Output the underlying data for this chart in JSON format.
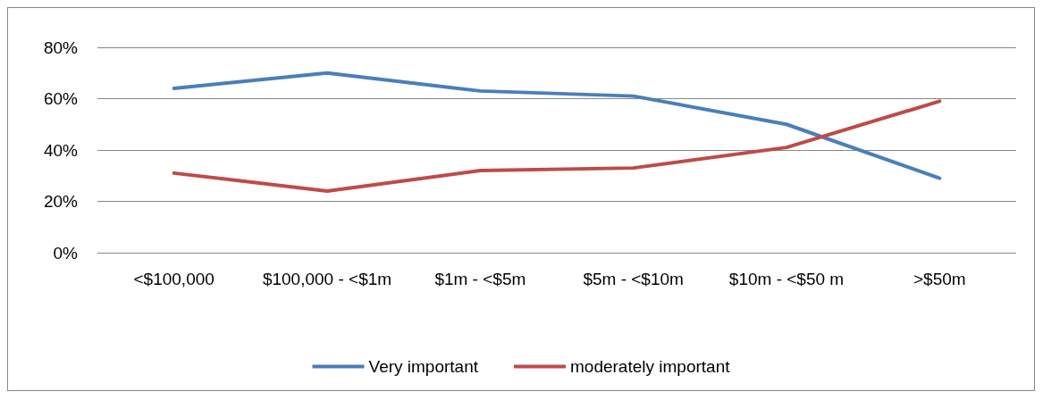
{
  "chart_data": {
    "type": "line",
    "categories": [
      "<$100,000",
      "$100,000 - <$1m",
      "$1m - <$5m",
      "$5m - <$10m",
      "$10m - <$50 m",
      ">$50m"
    ],
    "series": [
      {
        "name": "Very important",
        "color": "#4a7ebb",
        "values": [
          64,
          70,
          63,
          61,
          50,
          29
        ]
      },
      {
        "name": "moderately important",
        "color": "#be4b48",
        "values": [
          31,
          24,
          32,
          33,
          41,
          59
        ]
      }
    ],
    "ylim": [
      0,
      80
    ],
    "yticks": [
      {
        "value": 0,
        "label": "0%"
      },
      {
        "value": 20,
        "label": "20%"
      },
      {
        "value": 40,
        "label": "40%"
      },
      {
        "value": 60,
        "label": "60%"
      },
      {
        "value": 80,
        "label": "80%"
      }
    ],
    "grid": "y",
    "legend": "bottom",
    "marker": "none",
    "line_style": "solid"
  }
}
